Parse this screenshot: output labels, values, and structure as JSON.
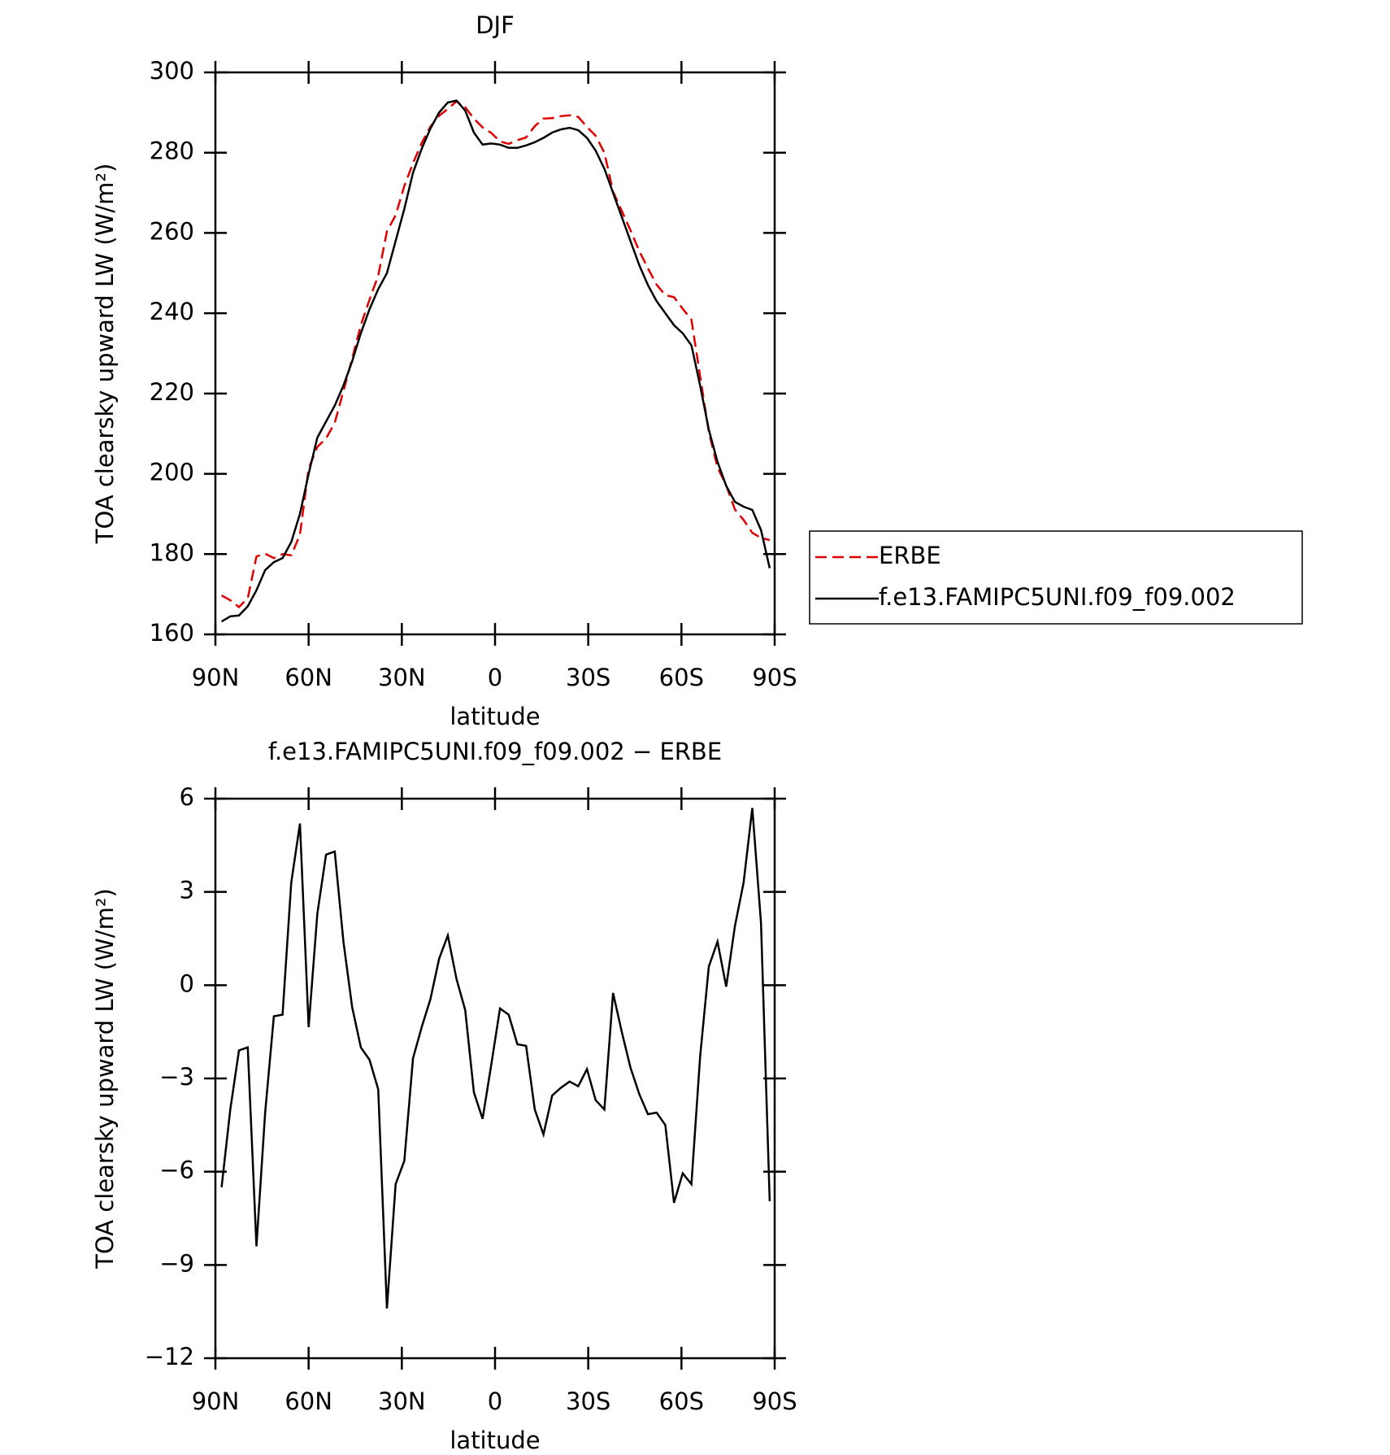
{
  "chart_data": [
    {
      "type": "line",
      "title": "DJF",
      "xlabel": "latitude",
      "ylabel": "TOA clearsky upward LW (W/m²)",
      "x": [
        88,
        85.2,
        82.4,
        79.6,
        76.8,
        74,
        71.2,
        68.4,
        65.6,
        62.8,
        60,
        57.2,
        54.4,
        51.6,
        48.8,
        46,
        43.2,
        40.4,
        37.6,
        34.8,
        32,
        29.2,
        26.4,
        23.6,
        20.8,
        18,
        15.2,
        12.4,
        9.6,
        6.8,
        4,
        1.2,
        -1.6,
        -4.4,
        -7.2,
        -10,
        -12.8,
        -15.6,
        -18.4,
        -21.2,
        -24,
        -26.8,
        -29.6,
        -32.4,
        -35.2,
        -38,
        -40.8,
        -43.6,
        -46.4,
        -49.2,
        -52,
        -54.8,
        -57.6,
        -60.4,
        -63.2,
        -66,
        -68.8,
        -71.6,
        -74.4,
        -77.2,
        -80,
        -82.8,
        -85.6,
        -88.4
      ],
      "series": [
        {
          "name": "ERBE",
          "color": "#e00000",
          "dash": true,
          "values": [
            169.7,
            168.5,
            166.8,
            169,
            179.4,
            180.1,
            179,
            180,
            179.7,
            184.8,
            201.4,
            206.7,
            208.8,
            212.7,
            220.6,
            228.7,
            237,
            243.4,
            249.4,
            260.4,
            264.4,
            271.7,
            277.4,
            282.4,
            286.5,
            289.2,
            290.9,
            292.8,
            291.3,
            288.5,
            286.3,
            284.9,
            282.8,
            282.2,
            283.1,
            283.8,
            286.6,
            288.5,
            288.6,
            289.1,
            289.3,
            288.9,
            286.4,
            284.2,
            280,
            270.3,
            265.5,
            260.7,
            255.5,
            251.2,
            247.1,
            244.5,
            244,
            241.1,
            238.4,
            224.3,
            210.4,
            201.6,
            197.1,
            191.1,
            188.5,
            185.3,
            184,
            183.5
          ]
        },
        {
          "name": "f.e13.FAMIPC5UNI.f09_f09.002",
          "color": "#000000",
          "dash": false,
          "values": [
            163.2,
            164.5,
            164.7,
            167,
            171,
            176,
            178,
            179,
            183,
            190,
            200,
            209,
            213,
            217,
            222,
            228,
            235,
            241,
            246,
            250,
            258,
            266,
            275,
            281,
            286,
            290,
            292.5,
            293,
            290.5,
            285,
            282,
            282.3,
            282,
            281.2,
            281.2,
            281.8,
            282.6,
            283.7,
            285,
            285.8,
            286.2,
            285.6,
            283.7,
            280.5,
            276,
            270,
            264,
            258,
            252,
            247,
            243,
            240,
            237,
            235,
            232,
            222,
            211,
            203,
            197,
            193,
            191.8,
            191,
            186,
            176.5
          ]
        }
      ],
      "xlim": [
        90,
        -90
      ],
      "xticks": [
        {
          "value": 90,
          "label": "90N"
        },
        {
          "value": 60,
          "label": "60N"
        },
        {
          "value": 30,
          "label": "30N"
        },
        0,
        {
          "value": -30,
          "label": "30S"
        },
        {
          "value": -60,
          "label": "60S"
        },
        {
          "value": -90,
          "label": "90S"
        }
      ],
      "ylim": [
        160,
        300
      ],
      "yticks": [
        160,
        180,
        200,
        220,
        240,
        260,
        280,
        300
      ],
      "legend": "right"
    },
    {
      "type": "line",
      "title": "f.e13.FAMIPC5UNI.f09_f09.002 − ERBE",
      "xlabel": "latitude",
      "ylabel": "TOA clearsky upward LW (W/m²)",
      "x": [
        88,
        85.2,
        82.4,
        79.6,
        76.8,
        74,
        71.2,
        68.4,
        65.6,
        62.8,
        60,
        57.2,
        54.4,
        51.6,
        48.8,
        46,
        43.2,
        40.4,
        37.6,
        34.8,
        32,
        29.2,
        26.4,
        23.6,
        20.8,
        18,
        15.2,
        12.4,
        9.6,
        6.8,
        4,
        1.2,
        -1.6,
        -4.4,
        -7.2,
        -10,
        -12.8,
        -15.6,
        -18.4,
        -21.2,
        -24,
        -26.8,
        -29.6,
        -32.4,
        -35.2,
        -38,
        -40.8,
        -43.6,
        -46.4,
        -49.2,
        -52,
        -54.8,
        -57.6,
        -60.4,
        -63.2,
        -66,
        -68.8,
        -71.6,
        -74.4,
        -77.2,
        -80,
        -82.8,
        -85.6,
        -88.4
      ],
      "series": [
        {
          "color": "#000000",
          "dash": false,
          "values": [
            -6.5,
            -4.0,
            -2.1,
            -2.0,
            -8.4,
            -4.1,
            -1.0,
            -0.95,
            3.3,
            5.2,
            -1.35,
            2.3,
            4.2,
            4.3,
            1.4,
            -0.7,
            -2.0,
            -2.4,
            -3.35,
            -10.4,
            -6.4,
            -5.65,
            -2.35,
            -1.35,
            -0.45,
            0.85,
            1.6,
            0.2,
            -0.8,
            -3.45,
            -4.3,
            -2.55,
            -0.75,
            -0.95,
            -1.9,
            -1.95,
            -4.0,
            -4.8,
            -3.55,
            -3.3,
            -3.1,
            -3.25,
            -2.7,
            -3.7,
            -4.0,
            -0.25,
            -1.5,
            -2.65,
            -3.5,
            -4.15,
            -4.1,
            -4.5,
            -7.0,
            -6.05,
            -6.4,
            -2.3,
            0.6,
            1.4,
            -0.05,
            1.9,
            3.3,
            5.7,
            2.0,
            -6.95
          ]
        }
      ],
      "xlim": [
        90,
        -90
      ],
      "xticks": [
        {
          "value": 90,
          "label": "90N"
        },
        {
          "value": 60,
          "label": "60N"
        },
        {
          "value": 30,
          "label": "30N"
        },
        0,
        {
          "value": -30,
          "label": "30S"
        },
        {
          "value": -60,
          "label": "60S"
        },
        {
          "value": -90,
          "label": "90S"
        }
      ],
      "ylim": [
        -12,
        6
      ],
      "yticks": [
        {
          "value": -12,
          "label": "−12"
        },
        {
          "value": -9,
          "label": "−9"
        },
        {
          "value": -6,
          "label": "−6"
        },
        {
          "value": -3,
          "label": "−3"
        },
        0,
        3,
        6
      ]
    }
  ]
}
